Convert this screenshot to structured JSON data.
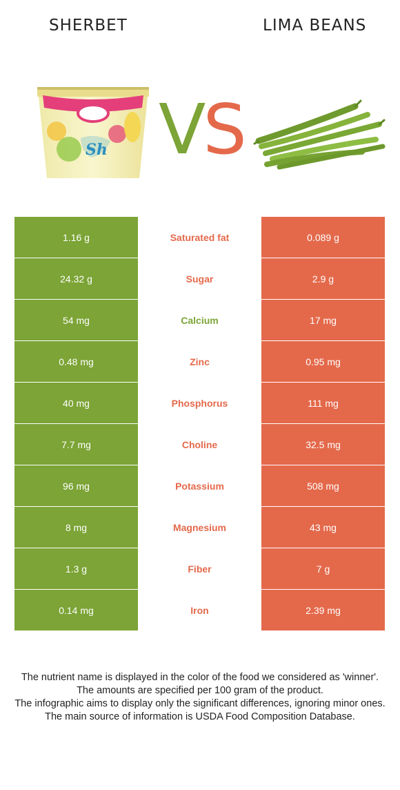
{
  "header": {
    "left_food": "SHERBET",
    "right_food": "LIMA BEANS",
    "vs_v": "V",
    "vs_s": "S",
    "left_image_icon": "sherbet-tub-image",
    "right_image_icon": "lima-beans-image"
  },
  "colors": {
    "winner_left": "#7ca436",
    "winner_right": "#e4694b"
  },
  "rows": [
    {
      "left": "1.16 g",
      "nutrient": "Saturated fat",
      "right": "0.089 g",
      "winner": "right"
    },
    {
      "left": "24.32 g",
      "nutrient": "Sugar",
      "right": "2.9 g",
      "winner": "right"
    },
    {
      "left": "54 mg",
      "nutrient": "Calcium",
      "right": "17 mg",
      "winner": "left"
    },
    {
      "left": "0.48 mg",
      "nutrient": "Zinc",
      "right": "0.95 mg",
      "winner": "right"
    },
    {
      "left": "40 mg",
      "nutrient": "Phosphorus",
      "right": "111 mg",
      "winner": "right"
    },
    {
      "left": "7.7 mg",
      "nutrient": "Choline",
      "right": "32.5 mg",
      "winner": "right"
    },
    {
      "left": "96 mg",
      "nutrient": "Potassium",
      "right": "508 mg",
      "winner": "right"
    },
    {
      "left": "8 mg",
      "nutrient": "Magnesium",
      "right": "43 mg",
      "winner": "right"
    },
    {
      "left": "1.3 g",
      "nutrient": "Fiber",
      "right": "7 g",
      "winner": "right"
    },
    {
      "left": "0.14 mg",
      "nutrient": "Iron",
      "right": "2.39 mg",
      "winner": "right"
    }
  ],
  "footer": {
    "line1": "The nutrient name is displayed in the color of the food we considered as 'winner'.",
    "line2": "The amounts are specified per 100 gram of the product.",
    "line3": "The infographic aims to display only the significant differences, ignoring minor ones.",
    "line4": "The main source of information is USDA Food Composition Database."
  }
}
